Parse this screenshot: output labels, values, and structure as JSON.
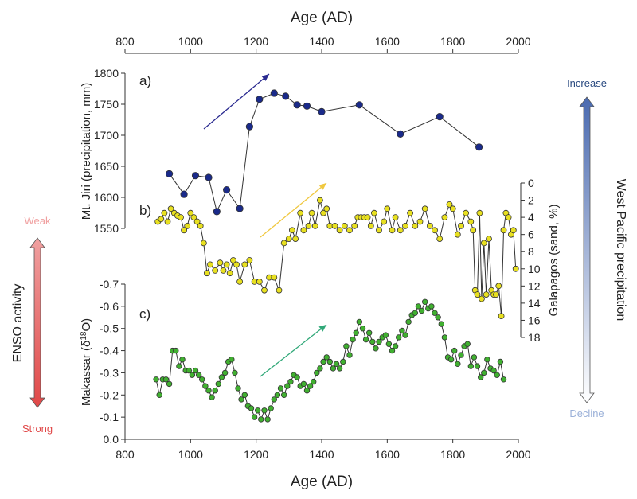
{
  "figure": {
    "top_axis_label": "Age (AD)",
    "bottom_axis_label": "Age (AD)",
    "x_ticks": [
      800,
      1000,
      1200,
      1400,
      1600,
      1800,
      2000
    ],
    "xlim": [
      800,
      2000
    ],
    "enso": {
      "label": "ENSO activity",
      "weak": "Weak",
      "strong": "Strong",
      "weak_color": "#f0a0a0",
      "strong_color": "#e04848"
    },
    "wpp": {
      "label": "West Pacific precipitation",
      "increase": "Increase",
      "decline": "Decline",
      "increase_color": "#2a4a80",
      "decline_color": "#9ab0d8"
    }
  },
  "chart_data": [
    {
      "type": "scatter",
      "panel_label": "a)",
      "ylabel": "Mt. Jiri (precipitation, mm)",
      "ylim": [
        1550,
        1800
      ],
      "y_ticks": [
        1550,
        1600,
        1650,
        1700,
        1750,
        1800
      ],
      "color": "#1a2a8a",
      "arrow_color": "#2a2a90",
      "x": [
        935,
        980,
        1015,
        1055,
        1080,
        1110,
        1150,
        1180,
        1210,
        1255,
        1290,
        1325,
        1355,
        1400,
        1515,
        1640,
        1760,
        1880
      ],
      "y": [
        1638,
        1605,
        1635,
        1632,
        1577,
        1612,
        1582,
        1714,
        1758,
        1768,
        1763,
        1749,
        1747,
        1738,
        1749,
        1702,
        1730,
        1681
      ]
    },
    {
      "type": "line",
      "panel_label": "b)",
      "ylabel": "Galapagos (sand, %)",
      "ylim": [
        0,
        18
      ],
      "y_ticks": [
        0,
        2,
        4,
        6,
        8,
        10,
        12,
        14,
        16,
        18
      ],
      "y_reversed": true,
      "color": "#e8e020",
      "arrow_color": "#f0c840",
      "x": [
        900,
        910,
        920,
        930,
        940,
        950,
        960,
        970,
        980,
        990,
        1000,
        1010,
        1020,
        1030,
        1040,
        1050,
        1060,
        1075,
        1090,
        1100,
        1110,
        1120,
        1130,
        1140,
        1150,
        1165,
        1180,
        1195,
        1210,
        1225,
        1240,
        1255,
        1270,
        1285,
        1300,
        1310,
        1320,
        1335,
        1345,
        1360,
        1370,
        1380,
        1395,
        1405,
        1415,
        1425,
        1440,
        1455,
        1470,
        1485,
        1500,
        1510,
        1520,
        1530,
        1540,
        1550,
        1560,
        1575,
        1590,
        1600,
        1615,
        1625,
        1640,
        1655,
        1670,
        1685,
        1700,
        1715,
        1730,
        1745,
        1760,
        1775,
        1790,
        1800,
        1815,
        1825,
        1840,
        1855,
        1862,
        1868,
        1875,
        1882,
        1888,
        1895,
        1902,
        1910,
        1918,
        1925,
        1932,
        1940,
        1948,
        1955,
        1962,
        1970,
        1978,
        1985,
        1992
      ],
      "y": [
        4.5,
        4.2,
        3.5,
        4.5,
        3.0,
        3.5,
        3.8,
        4.0,
        5.5,
        5.0,
        3.5,
        4.0,
        4.5,
        5.0,
        7.0,
        10.5,
        9.5,
        10.2,
        9.3,
        10.2,
        9.5,
        10.5,
        9.0,
        9.5,
        11.5,
        9.5,
        9.0,
        11.5,
        11.5,
        12.5,
        11.0,
        11.0,
        12.5,
        7.0,
        6.5,
        5.5,
        6.5,
        3.5,
        5.5,
        5.0,
        3.5,
        5.0,
        2.0,
        3.5,
        3.0,
        5.0,
        5.0,
        5.5,
        5.0,
        5.5,
        5.0,
        4.0,
        4.0,
        4.0,
        4.0,
        5.0,
        3.5,
        5.5,
        4.5,
        3.0,
        5.5,
        4.0,
        5.5,
        5.0,
        3.5,
        5.0,
        4.5,
        3.0,
        5.0,
        5.5,
        6.5,
        4.0,
        2.5,
        3.0,
        6.0,
        5.0,
        3.5,
        4.5,
        5.5,
        12.5,
        13.0,
        3.5,
        13.5,
        7.0,
        13.0,
        6.5,
        12.5,
        13.0,
        13.0,
        12.0,
        15.5,
        5.5,
        3.5,
        4.0,
        6.0,
        5.5,
        10.0
      ]
    },
    {
      "type": "line",
      "panel_label": "c)",
      "ylabel": "Makassar (δ18O)",
      "ylim": [
        -0.7,
        0.0
      ],
      "y_ticks": [
        -0.7,
        -0.6,
        -0.5,
        -0.4,
        -0.3,
        -0.2,
        -0.1,
        0.0
      ],
      "y_tick_labels": [
        "-0.7",
        "-0.6",
        "-0.5",
        "-0.4",
        "-0.3",
        "-0.2",
        "-0.1",
        "0.0"
      ],
      "y_reversed": true,
      "color": "#40b030",
      "arrow_color": "#30a878",
      "x": [
        895,
        905,
        915,
        925,
        935,
        945,
        955,
        965,
        975,
        985,
        995,
        1005,
        1015,
        1025,
        1035,
        1045,
        1055,
        1065,
        1075,
        1085,
        1095,
        1105,
        1115,
        1125,
        1135,
        1145,
        1155,
        1165,
        1175,
        1185,
        1195,
        1205,
        1215,
        1225,
        1235,
        1245,
        1255,
        1265,
        1275,
        1285,
        1295,
        1305,
        1315,
        1325,
        1335,
        1345,
        1355,
        1365,
        1375,
        1385,
        1395,
        1405,
        1415,
        1425,
        1435,
        1445,
        1455,
        1465,
        1475,
        1485,
        1495,
        1505,
        1515,
        1525,
        1535,
        1545,
        1555,
        1565,
        1575,
        1585,
        1595,
        1605,
        1615,
        1625,
        1635,
        1645,
        1655,
        1665,
        1675,
        1685,
        1695,
        1705,
        1715,
        1725,
        1735,
        1745,
        1755,
        1765,
        1775,
        1785,
        1795,
        1805,
        1815,
        1825,
        1835,
        1845,
        1855,
        1865,
        1875,
        1885,
        1895,
        1905,
        1915,
        1925,
        1935,
        1945,
        1955
      ],
      "y": [
        -0.27,
        -0.2,
        -0.27,
        -0.27,
        -0.25,
        -0.4,
        -0.4,
        -0.33,
        -0.36,
        -0.31,
        -0.31,
        -0.29,
        -0.31,
        -0.29,
        -0.27,
        -0.24,
        -0.22,
        -0.19,
        -0.22,
        -0.25,
        -0.28,
        -0.3,
        -0.35,
        -0.36,
        -0.3,
        -0.23,
        -0.18,
        -0.2,
        -0.15,
        -0.14,
        -0.1,
        -0.13,
        -0.09,
        -0.13,
        -0.09,
        -0.14,
        -0.18,
        -0.2,
        -0.23,
        -0.2,
        -0.24,
        -0.26,
        -0.29,
        -0.28,
        -0.24,
        -0.25,
        -0.22,
        -0.24,
        -0.26,
        -0.3,
        -0.32,
        -0.35,
        -0.37,
        -0.35,
        -0.32,
        -0.34,
        -0.32,
        -0.35,
        -0.42,
        -0.38,
        -0.45,
        -0.48,
        -0.53,
        -0.5,
        -0.45,
        -0.48,
        -0.44,
        -0.41,
        -0.44,
        -0.46,
        -0.47,
        -0.43,
        -0.4,
        -0.42,
        -0.46,
        -0.49,
        -0.47,
        -0.53,
        -0.56,
        -0.57,
        -0.6,
        -0.58,
        -0.62,
        -0.59,
        -0.6,
        -0.57,
        -0.55,
        -0.52,
        -0.46,
        -0.37,
        -0.36,
        -0.4,
        -0.34,
        -0.38,
        -0.42,
        -0.43,
        -0.33,
        -0.37,
        -0.33,
        -0.28,
        -0.3,
        -0.36,
        -0.32,
        -0.31,
        -0.29,
        -0.35,
        -0.27
      ]
    }
  ]
}
